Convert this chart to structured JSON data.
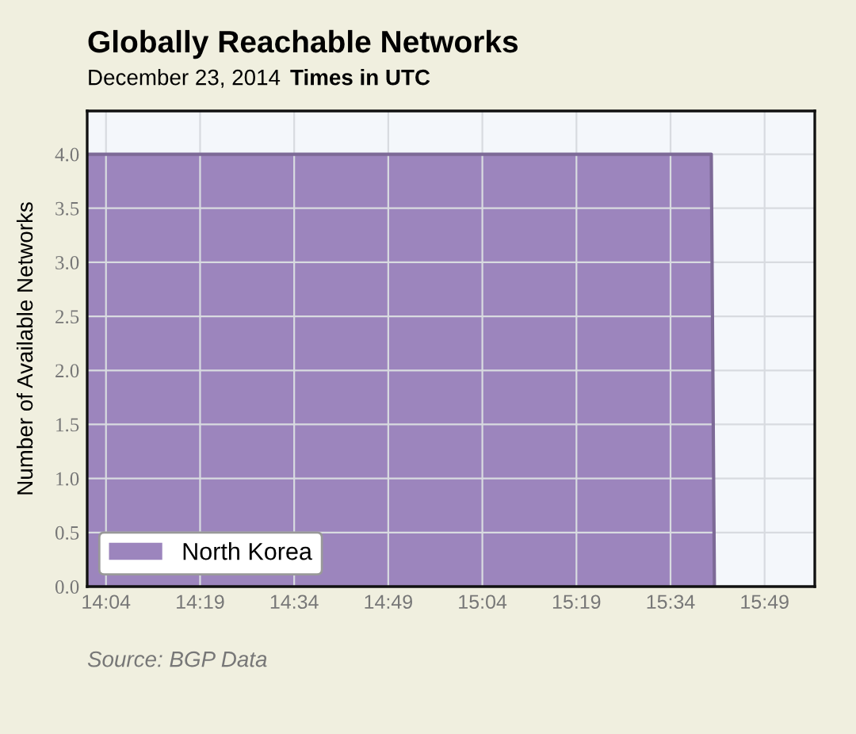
{
  "chart_data": {
    "type": "area",
    "title": "Globally Reachable Networks",
    "subtitle": "December 23, 2014",
    "annotations": [
      "Times in UTC",
      "Source: BGP Data"
    ],
    "ylabel": "Number of Available Networks",
    "series": [
      {
        "name": "North Korea",
        "color": "#9c85bd",
        "x": [
          14.0167,
          15.675,
          15.6833
        ],
        "values": [
          4,
          4,
          0
        ]
      }
    ],
    "xlim": [
      14.0167,
      15.95
    ],
    "xticks": [
      {
        "value": 14.0667,
        "label": "14:04"
      },
      {
        "value": 14.3167,
        "label": "14:19"
      },
      {
        "value": 14.5667,
        "label": "14:34"
      },
      {
        "value": 14.8167,
        "label": "14:49"
      },
      {
        "value": 15.0667,
        "label": "15:04"
      },
      {
        "value": 15.3167,
        "label": "15:19"
      },
      {
        "value": 15.5667,
        "label": "15:34"
      },
      {
        "value": 15.8167,
        "label": "15:49"
      }
    ],
    "ylim": [
      0,
      4.4
    ],
    "yticks": [
      {
        "value": 0,
        "label": "0.0"
      },
      {
        "value": 0.5,
        "label": "0.5"
      },
      {
        "value": 1,
        "label": "1.0"
      },
      {
        "value": 1.5,
        "label": "1.5"
      },
      {
        "value": 2,
        "label": "2.0"
      },
      {
        "value": 2.5,
        "label": "2.5"
      },
      {
        "value": 3,
        "label": "3.0"
      },
      {
        "value": 3.5,
        "label": "3.5"
      },
      {
        "value": 4,
        "label": "4.0"
      }
    ],
    "grid": true,
    "legend": "bottom left"
  }
}
